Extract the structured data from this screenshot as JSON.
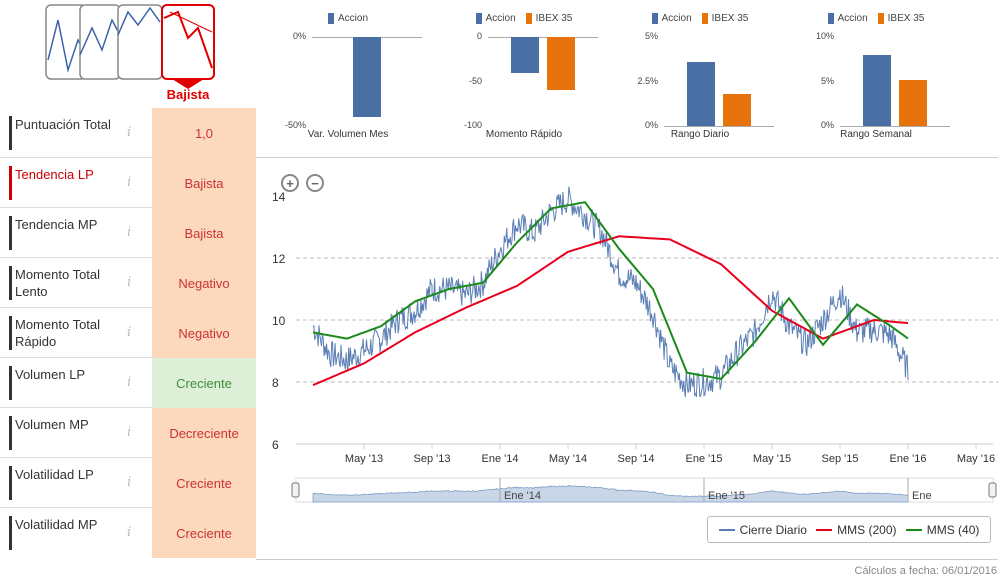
{
  "trend_selector": {
    "selected_label": "Bajista",
    "colors": {
      "selected": "#e00000",
      "frame": "#888888",
      "line": "#3a63a8"
    }
  },
  "indicators": [
    {
      "label": "Puntuación Total",
      "value": "1,0",
      "status": "neg",
      "highlight": false
    },
    {
      "label": "Tendencia LP",
      "value": "Bajista",
      "status": "neg",
      "highlight": true
    },
    {
      "label": "Tendencia MP",
      "value": "Bajista",
      "status": "neg",
      "highlight": false
    },
    {
      "label": "Momento Total Lento",
      "value": "Negativo",
      "status": "neg",
      "highlight": false
    },
    {
      "label": "Momento Total Rápido",
      "value": "Negativo",
      "status": "neg",
      "highlight": false
    },
    {
      "label": "Volumen LP",
      "value": "Creciente",
      "status": "pos",
      "highlight": false
    },
    {
      "label": "Volumen MP",
      "value": "Decreciente",
      "status": "neg",
      "highlight": false
    },
    {
      "label": "Volatilidad LP",
      "value": "Creciente",
      "status": "neg",
      "highlight": false
    },
    {
      "label": "Volatilidad MP",
      "value": "Creciente",
      "status": "neg",
      "highlight": false
    }
  ],
  "info_icon": "i",
  "mini_charts": [
    {
      "title": "Var. Volumen Mes",
      "legend": [
        "Accion"
      ],
      "ticks": [
        "0%",
        "-50%"
      ],
      "accion": -45,
      "ibex": null,
      "min": -50,
      "max": 0
    },
    {
      "title": "Momento Rápido",
      "legend": [
        "Accion",
        "IBEX 35"
      ],
      "ticks": [
        "0",
        "-50",
        "-100"
      ],
      "accion": -40,
      "ibex": -60,
      "min": -100,
      "max": 0
    },
    {
      "title": "Rango Diario",
      "legend": [
        "Accion",
        "IBEX 35"
      ],
      "ticks": [
        "5%",
        "2.5%",
        "0%"
      ],
      "accion": 3.6,
      "ibex": 1.8,
      "min": 0,
      "max": 5
    },
    {
      "title": "Rango Semanal",
      "legend": [
        "Accion",
        "IBEX 35"
      ],
      "ticks": [
        "10%",
        "5%",
        "0%"
      ],
      "accion": 8.0,
      "ibex": 5.2,
      "min": 0,
      "max": 10
    }
  ],
  "colors": {
    "accion": "#4a6fa5",
    "ibex": "#e8720c",
    "close": "#5b7fb5",
    "mms200": "#e8001c",
    "mms40": "#1a8a1a"
  },
  "zoom": {
    "in_symbol": "+",
    "out_symbol": "−"
  },
  "chart_data": {
    "type": "line",
    "y_ticks": [
      "14",
      "12",
      "10",
      "8",
      "6"
    ],
    "ylim": [
      6,
      14
    ],
    "x_ticks": [
      "May '13",
      "Sep '13",
      "Ene '14",
      "May '14",
      "Sep '14",
      "Ene '15",
      "May '15",
      "Sep '15",
      "Ene '16",
      "May '16"
    ],
    "navigator_labels": [
      "Ene '14",
      "Ene '15",
      "Ene"
    ],
    "series": [
      {
        "name": "Cierre Diario",
        "x": [
          "2013-02",
          "2013-03",
          "2013-04",
          "2013-05",
          "2013-06",
          "2013-07",
          "2013-08",
          "2013-09",
          "2013-10",
          "2013-11",
          "2013-12",
          "2014-01",
          "2014-02",
          "2014-03",
          "2014-04",
          "2014-05",
          "2014-06",
          "2014-07",
          "2014-08",
          "2014-09",
          "2014-10",
          "2014-11",
          "2014-12",
          "2015-01",
          "2015-02",
          "2015-03",
          "2015-04",
          "2015-05",
          "2015-06",
          "2015-07",
          "2015-08",
          "2015-09",
          "2015-10",
          "2015-11",
          "2015-12",
          "2016-01"
        ],
        "values": [
          9.8,
          8.9,
          8.7,
          9.0,
          9.4,
          10.0,
          10.3,
          11.0,
          11.0,
          10.8,
          11.2,
          12.3,
          13.1,
          12.8,
          13.5,
          13.9,
          13.4,
          12.8,
          11.5,
          11.2,
          10.2,
          8.5,
          7.9,
          8.0,
          8.2,
          9.0,
          9.6,
          10.9,
          9.8,
          9.2,
          10.0,
          10.9,
          9.6,
          9.7,
          9.5,
          8.4
        ]
      },
      {
        "name": "MMS (200)",
        "x": [
          "2013-02",
          "2013-05",
          "2013-08",
          "2013-11",
          "2014-02",
          "2014-05",
          "2014-08",
          "2014-11",
          "2015-02",
          "2015-05",
          "2015-08",
          "2015-11",
          "2016-01"
        ],
        "values": [
          7.9,
          8.6,
          9.6,
          10.4,
          11.1,
          12.2,
          12.7,
          12.6,
          11.8,
          10.3,
          9.4,
          10.0,
          9.9
        ]
      },
      {
        "name": "MMS (40)",
        "x": [
          "2013-02",
          "2013-04",
          "2013-06",
          "2013-08",
          "2013-10",
          "2013-12",
          "2014-02",
          "2014-04",
          "2014-06",
          "2014-08",
          "2014-10",
          "2014-12",
          "2015-02",
          "2015-04",
          "2015-06",
          "2015-08",
          "2015-10",
          "2015-12",
          "2016-01"
        ],
        "values": [
          9.6,
          9.4,
          9.8,
          10.6,
          11.0,
          11.2,
          12.5,
          13.6,
          13.8,
          12.3,
          11.0,
          8.3,
          8.1,
          9.3,
          10.7,
          9.2,
          10.5,
          9.8,
          9.4
        ]
      }
    ]
  },
  "legend": [
    {
      "label": "Cierre Diario",
      "color": "#5b7fb5"
    },
    {
      "label": "MMS (200)",
      "color": "#e8001c"
    },
    {
      "label": "MMS (40)",
      "color": "#1a8a1a"
    }
  ],
  "footer": {
    "calc_date": "Cálculos a fecha: 06/01/2016"
  }
}
